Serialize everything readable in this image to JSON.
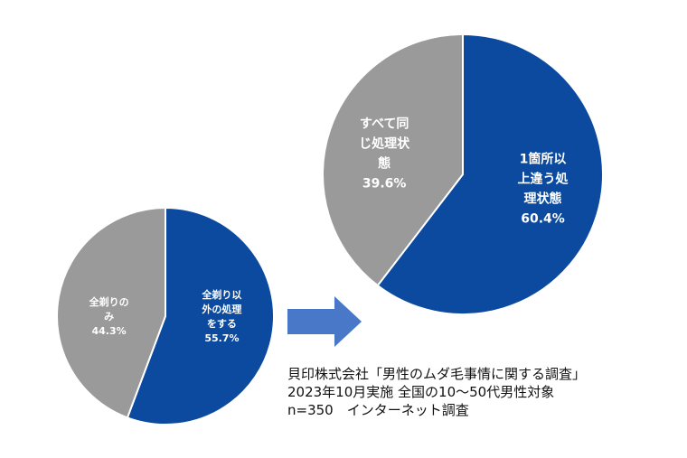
{
  "colors": {
    "blue": "#0b4a9e",
    "gray": "#9a9a9a",
    "arrow": "#4a78c8",
    "border": "#ffffff"
  },
  "chart_data": [
    {
      "type": "pie",
      "slices": [
        {
          "label_lines": [
            "全剃り以",
            "外の処理",
            "をする"
          ],
          "value": 55.7,
          "value_label": "55.7%",
          "color": "#0b4a9e"
        },
        {
          "label_lines": [
            "全剃りの",
            "み"
          ],
          "value": 44.3,
          "value_label": "44.3%",
          "color": "#9a9a9a"
        }
      ]
    },
    {
      "type": "pie",
      "slices": [
        {
          "label_lines": [
            "1箇所以",
            "上違う処",
            "理状態"
          ],
          "value": 60.4,
          "value_label": "60.4%",
          "color": "#0b4a9e"
        },
        {
          "label_lines": [
            "すべて同",
            "じ処理状",
            "態"
          ],
          "value": 39.6,
          "value_label": "39.6%",
          "color": "#9a9a9a"
        }
      ]
    }
  ],
  "arrow_icon": "right-arrow-icon",
  "note": {
    "line1": "貝印株式会社「男性のムダ毛事情に関する調査」",
    "line2": "2023年10月実施 全国の10～50代男性対象",
    "line3": "n=350　インターネット調査"
  }
}
